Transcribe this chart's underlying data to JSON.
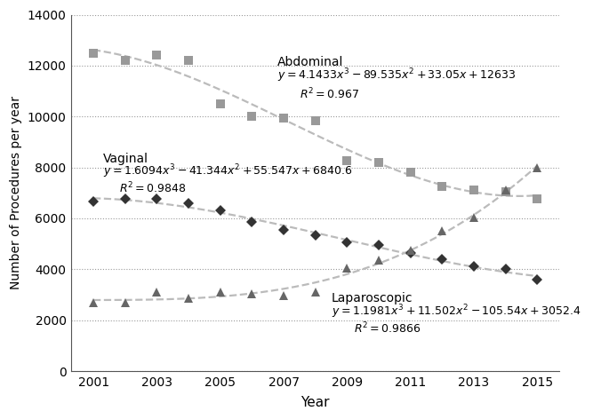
{
  "years": [
    2001,
    2002,
    2003,
    2004,
    2005,
    2006,
    2007,
    2008,
    2009,
    2010,
    2011,
    2012,
    2013,
    2014,
    2015
  ],
  "abdominal": [
    12500,
    12200,
    12400,
    12200,
    10500,
    10000,
    9950,
    9850,
    8250,
    8200,
    7800,
    7250,
    7100,
    7050,
    6750
  ],
  "vaginal": [
    6650,
    6750,
    6750,
    6600,
    6300,
    5850,
    5550,
    5350,
    5050,
    4950,
    4650,
    4400,
    4100,
    4000,
    3600
  ],
  "laparoscopic": [
    2700,
    2700,
    3100,
    2850,
    3100,
    3050,
    2950,
    3100,
    4050,
    4350,
    4750,
    5500,
    6050,
    7100,
    8000
  ],
  "abdominal_color": "#999999",
  "vaginal_color": "#333333",
  "laparoscopic_color": "#666666",
  "trend_color": "#bbbbbb",
  "background_color": "#ffffff",
  "ylabel": "Number of Procedures per year",
  "xlabel": "Year",
  "ylim": [
    0,
    14000
  ],
  "yticks": [
    0,
    2000,
    4000,
    6000,
    8000,
    10000,
    12000,
    14000
  ],
  "xticks": [
    2001,
    2003,
    2005,
    2007,
    2009,
    2011,
    2013,
    2015
  ],
  "abdominal_label": "Abdominal",
  "abdominal_eq": "$y = 4.1433x^3 - 89.535x^2 + 33.05x + 12633$",
  "abdominal_r2": "$R^2 = 0.967$",
  "abdominal_ann_x": 2006.8,
  "abdominal_ann_y": 11900,
  "abdominal_eq_x": 2006.8,
  "abdominal_eq_y": 11250,
  "abdominal_r2_x": 2007.5,
  "abdominal_r2_y": 10600,
  "vaginal_label": "Vaginal",
  "vaginal_eq": "$y = 1.6094x^3 - 41.344x^2 + 55.547x + 6840.6$",
  "vaginal_r2": "$R^2 = 0.9848$",
  "vaginal_ann_x": 2001.3,
  "vaginal_ann_y": 8100,
  "vaginal_eq_x": 2001.3,
  "vaginal_eq_y": 7500,
  "vaginal_r2_x": 2001.8,
  "vaginal_r2_y": 6900,
  "laparoscopic_label": "Laparoscopic",
  "laparoscopic_eq": "$y = 1.1981x^3 + 11.502x^2 - 105.54x + 3052.4$",
  "laparoscopic_r2": "$R^2 = 0.9866$",
  "laparoscopic_ann_x": 2008.5,
  "laparoscopic_ann_y": 2600,
  "laparoscopic_eq_x": 2008.5,
  "laparoscopic_eq_y": 2000,
  "laparoscopic_r2_x": 2009.2,
  "laparoscopic_r2_y": 1400
}
